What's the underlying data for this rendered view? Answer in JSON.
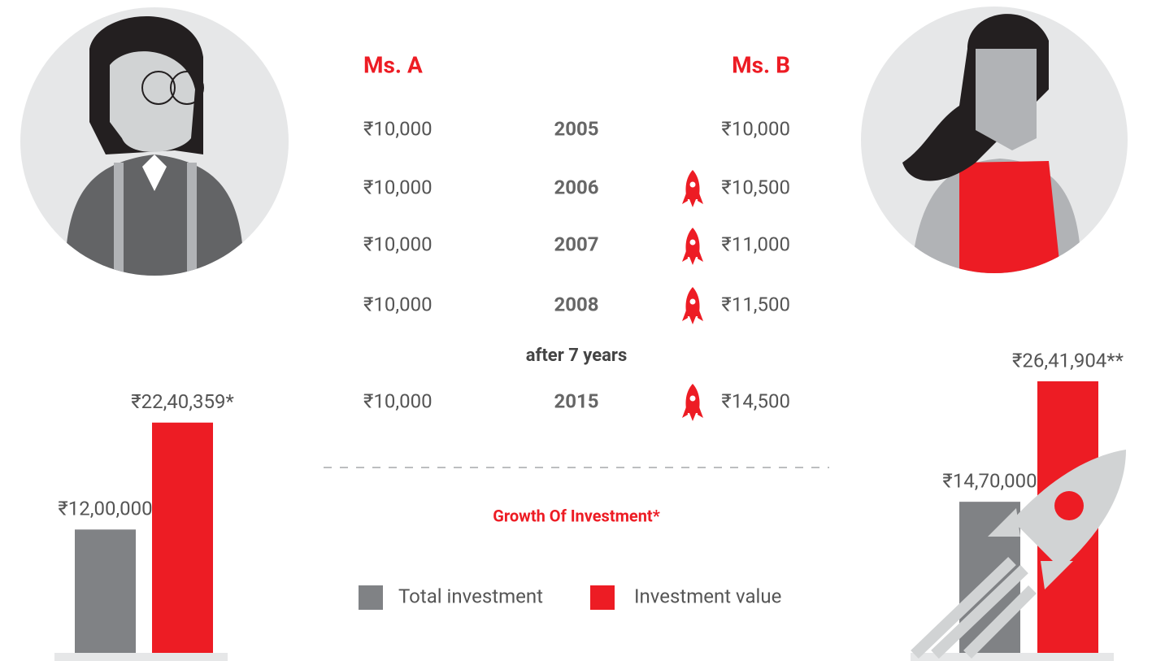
{
  "persons": [
    "Ms. A",
    "Ms. B"
  ],
  "table": {
    "rows": [
      [
        "₹10,000",
        "2005",
        "₹10,000"
      ],
      [
        "₹10,000",
        "2006",
        "₹10,500"
      ],
      [
        "₹10,000",
        "2007",
        "₹11,000"
      ],
      [
        "₹10,000",
        "2008",
        "₹11,500"
      ]
    ],
    "note": "after 7 years",
    "final_row": [
      "₹10,000",
      "2015",
      "₹14,500"
    ]
  },
  "section_title": "Growth Of Investment*",
  "legend": [
    {
      "name": "Total investment",
      "color": "#808285"
    },
    {
      "name": "Investment value",
      "color": "#ed1c24"
    }
  ],
  "chart_data": [
    {
      "type": "bar",
      "values": [
        1200000,
        2240359
      ],
      "value_labels": [
        "₹12,00,000",
        "₹22,40,359*"
      ]
    },
    {
      "type": "bar",
      "values": [
        1470000,
        2641904
      ],
      "value_labels": [
        "₹14,70,000",
        "₹26,41,904**"
      ]
    }
  ]
}
